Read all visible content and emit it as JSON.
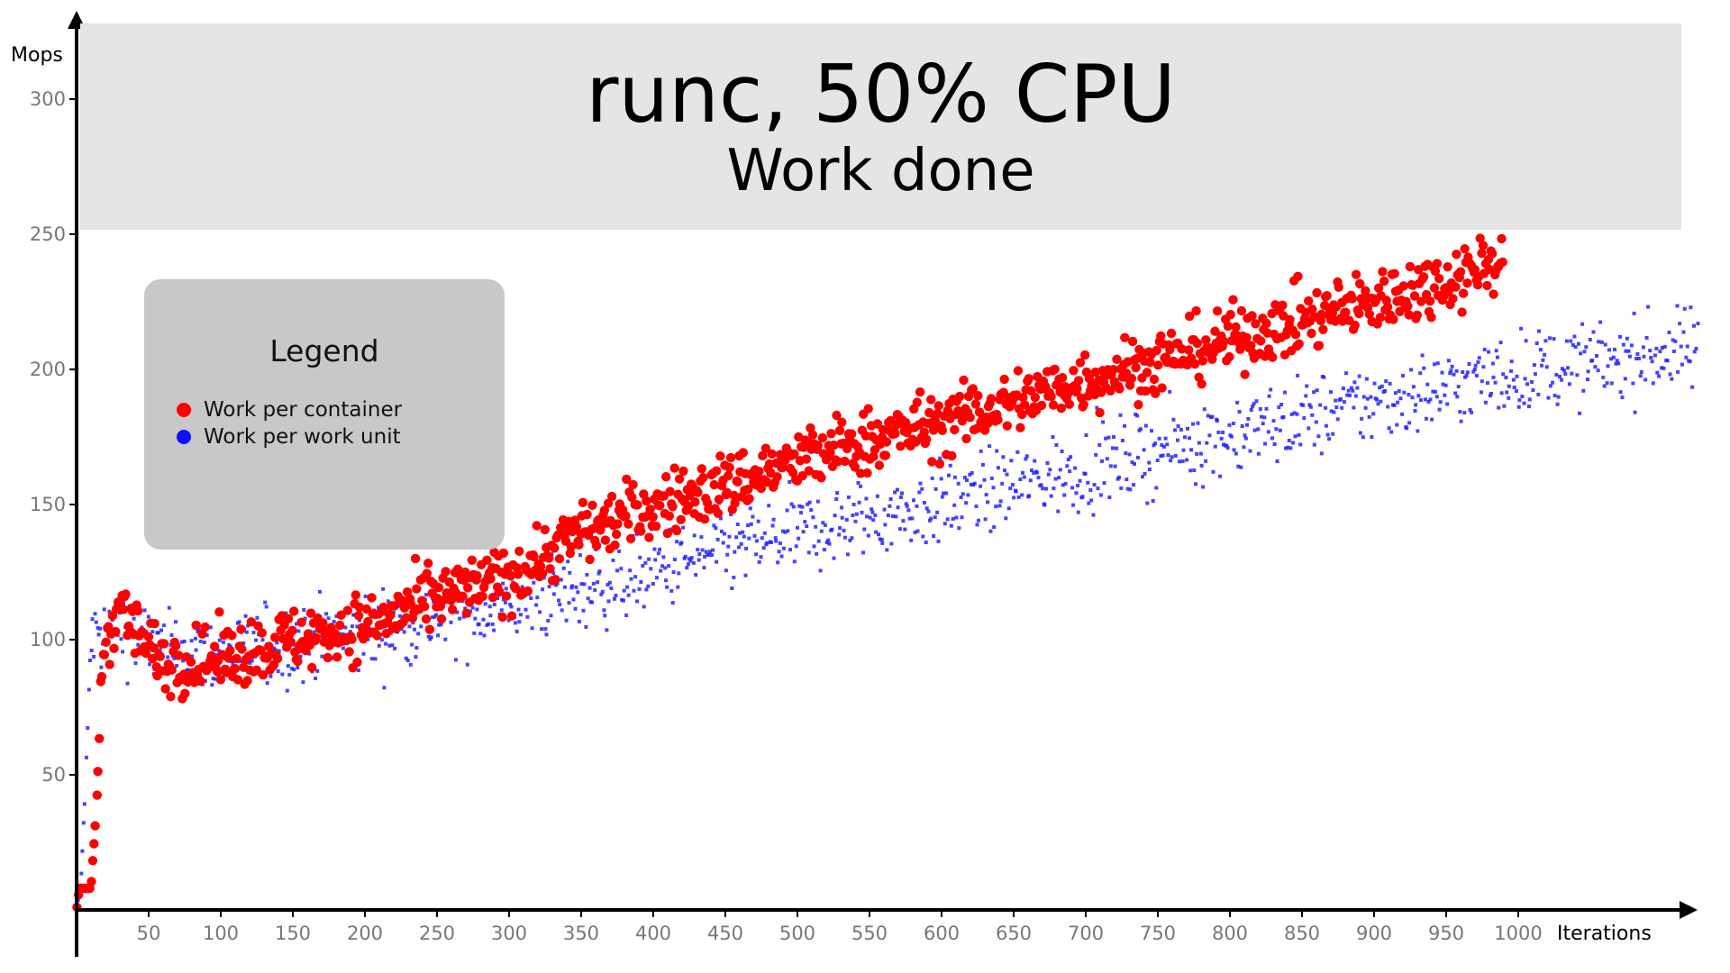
{
  "colors": {
    "container": "#ff0000",
    "work_unit": "#2323ff",
    "axis": "#000000"
  },
  "chart_data": {
    "type": "scatter",
    "title": "runc, 50% CPU",
    "subtitle": "Work done",
    "xlabel": "Iterations",
    "ylabel": "Mops",
    "xlim": [
      0,
      1125
    ],
    "ylim": [
      0,
      320
    ],
    "x_ticks": [
      50,
      100,
      150,
      200,
      250,
      300,
      350,
      400,
      450,
      500,
      550,
      600,
      650,
      700,
      750,
      800,
      850,
      900,
      950,
      1000
    ],
    "y_ticks": [
      50,
      100,
      150,
      200,
      250,
      300
    ],
    "grid": false,
    "legend": {
      "title": "Legend",
      "placement": "top-left",
      "entries": [
        "Work per container",
        "Work per work unit"
      ]
    },
    "series": [
      {
        "name": "Work per container",
        "marker": "circle",
        "trend_points": [
          [
            0,
            0
          ],
          [
            2,
            8
          ],
          [
            10,
            8
          ],
          [
            14,
            40
          ],
          [
            18,
            96
          ],
          [
            30,
            115
          ],
          [
            45,
            100
          ],
          [
            60,
            92
          ],
          [
            80,
            92
          ],
          [
            100,
            93
          ],
          [
            150,
            100
          ],
          [
            200,
            105
          ],
          [
            250,
            115
          ],
          [
            300,
            123
          ],
          [
            350,
            140
          ],
          [
            400,
            149
          ],
          [
            450,
            157
          ],
          [
            500,
            166
          ],
          [
            550,
            174
          ],
          [
            600,
            180
          ],
          [
            650,
            188
          ],
          [
            700,
            196
          ],
          [
            750,
            203
          ],
          [
            800,
            211
          ],
          [
            850,
            218
          ],
          [
            900,
            225
          ],
          [
            950,
            233
          ],
          [
            990,
            242
          ]
        ],
        "spread": 12
      },
      {
        "name": "Work per work unit",
        "marker": "square",
        "trend_points": [
          [
            0,
            0
          ],
          [
            3,
            10
          ],
          [
            6,
            45
          ],
          [
            10,
            100
          ],
          [
            30,
            105
          ],
          [
            60,
            95
          ],
          [
            100,
            94
          ],
          [
            150,
            98
          ],
          [
            200,
            102
          ],
          [
            250,
            108
          ],
          [
            300,
            113
          ],
          [
            350,
            118
          ],
          [
            400,
            125
          ],
          [
            450,
            133
          ],
          [
            500,
            139
          ],
          [
            550,
            145
          ],
          [
            600,
            150
          ],
          [
            650,
            157
          ],
          [
            700,
            163
          ],
          [
            750,
            170
          ],
          [
            800,
            176
          ],
          [
            850,
            182
          ],
          [
            900,
            188
          ],
          [
            950,
            193
          ],
          [
            1000,
            199
          ],
          [
            1050,
            202
          ],
          [
            1100,
            206
          ],
          [
            1125,
            208
          ]
        ],
        "spread": 15
      }
    ]
  }
}
